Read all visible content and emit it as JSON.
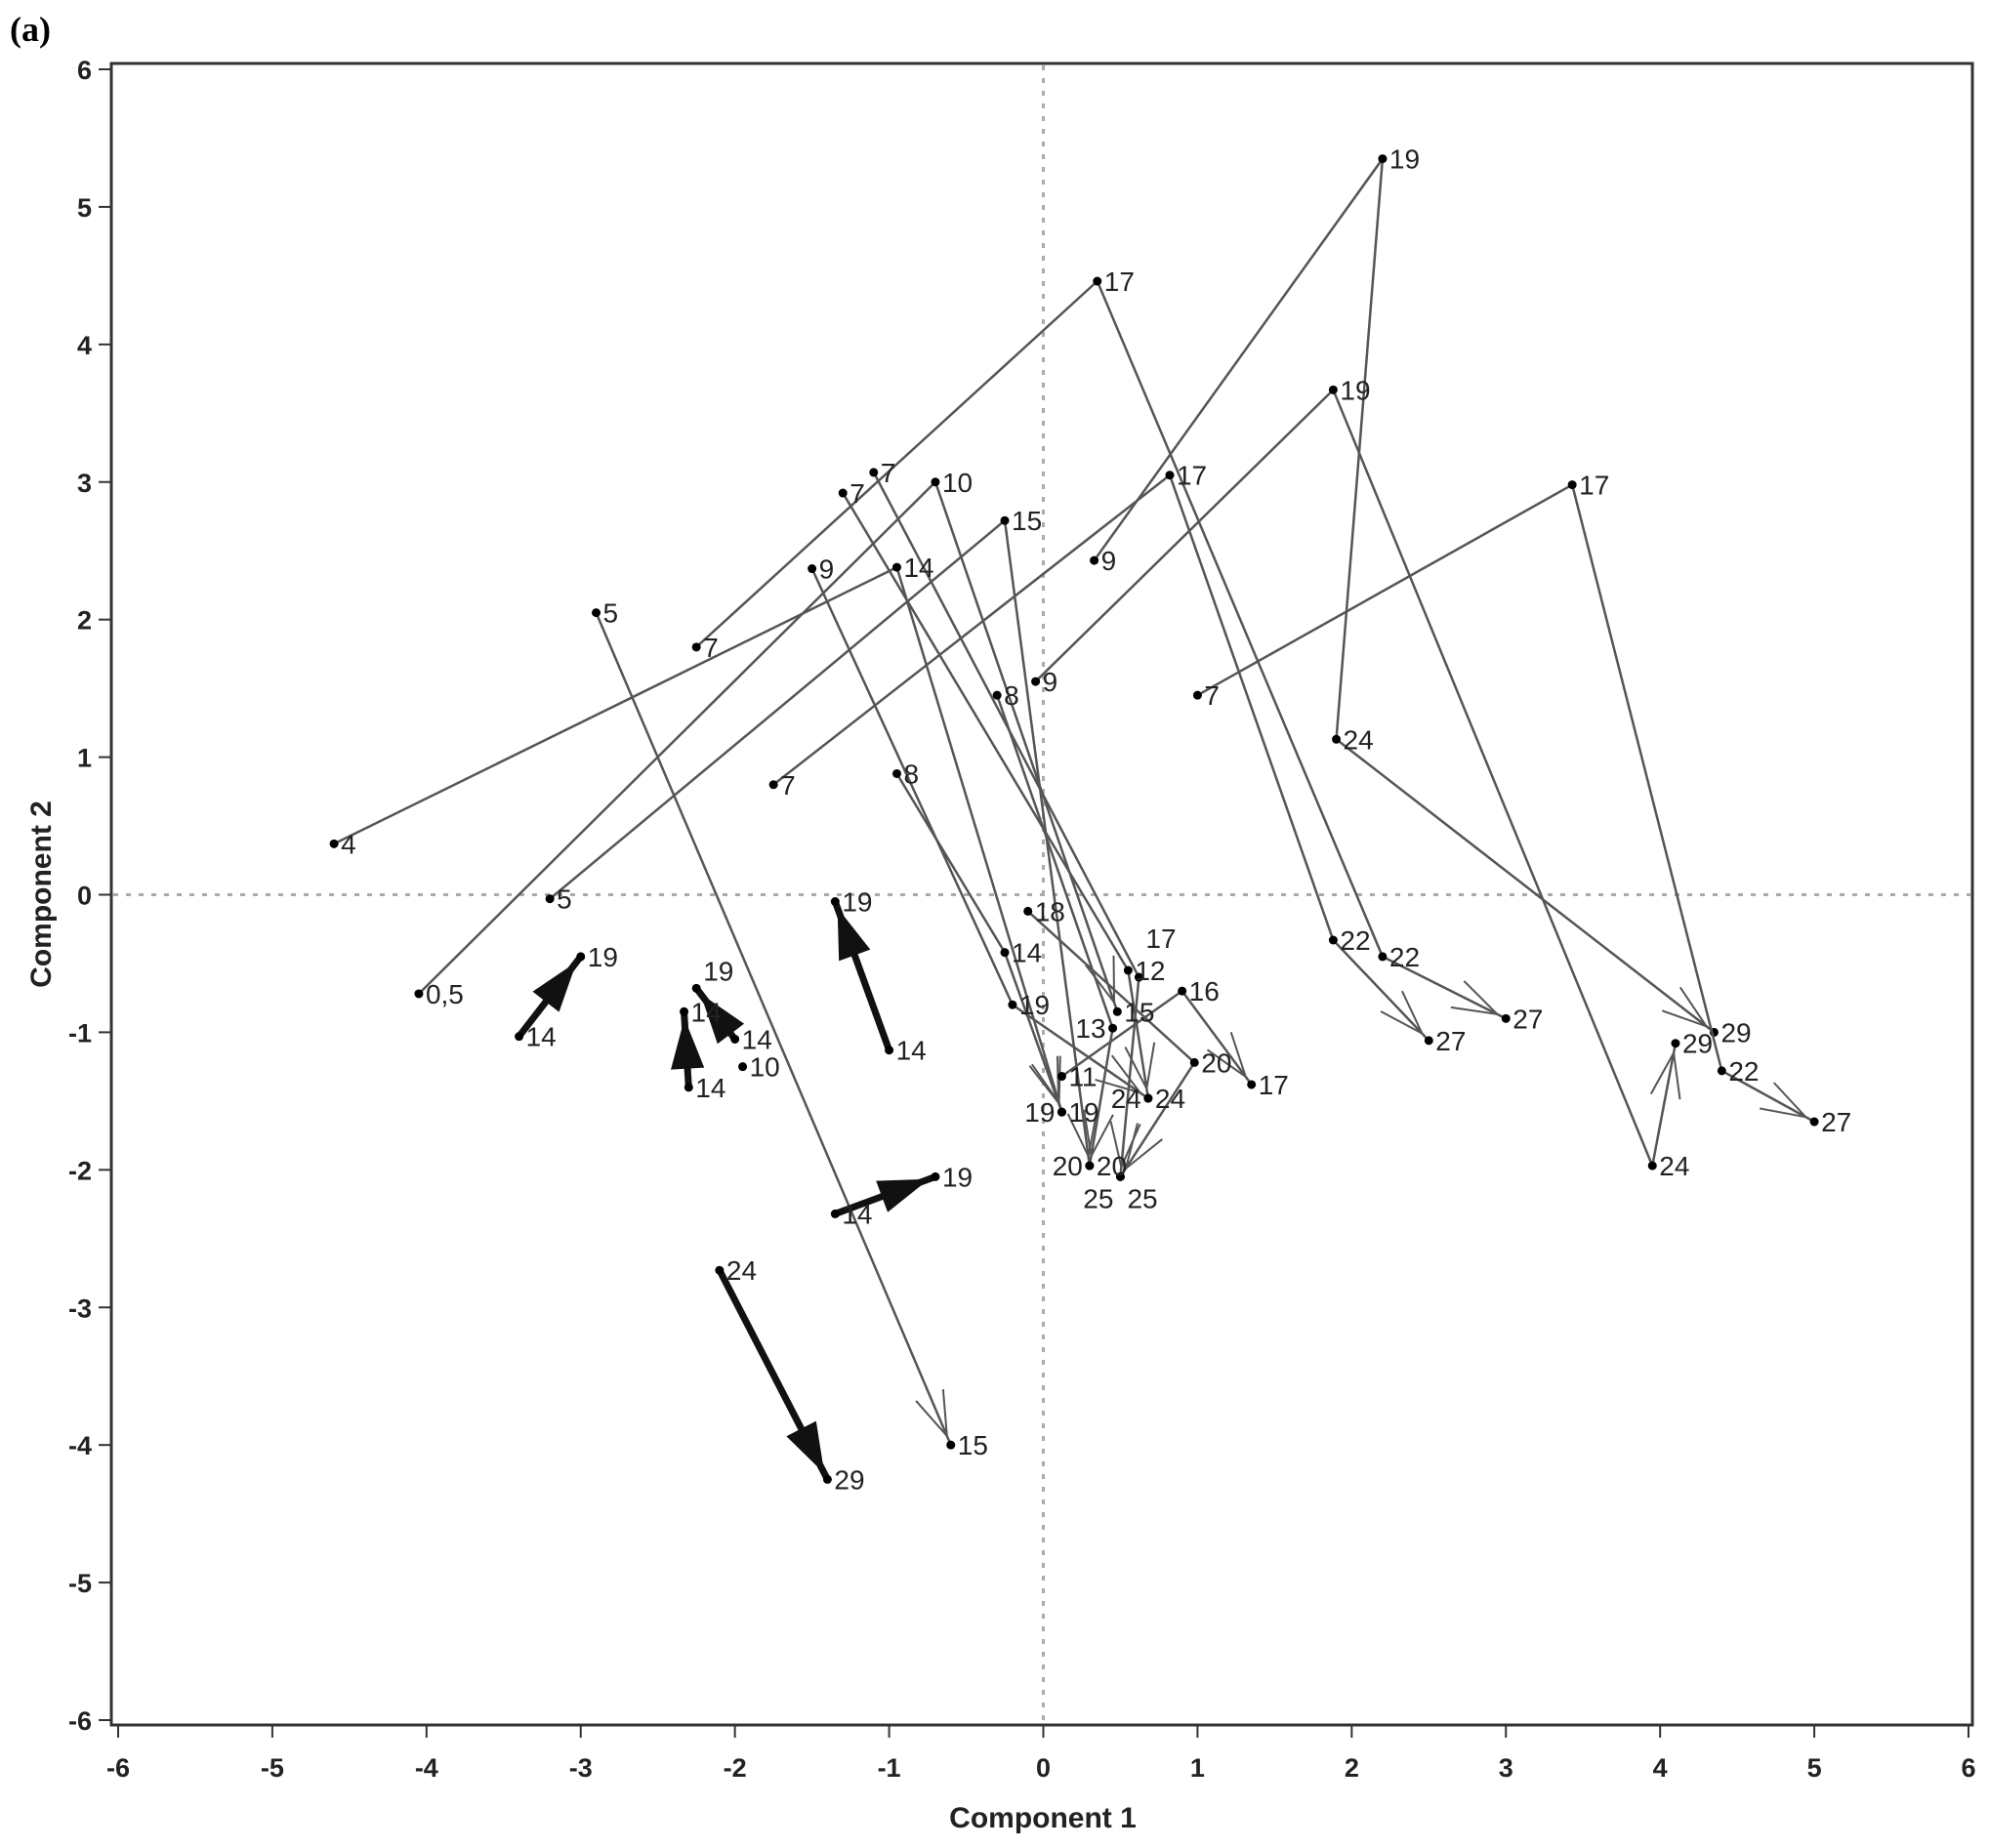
{
  "chart_data": {
    "type": "scatter",
    "panel_label": "(a)",
    "xlabel": "Component 1",
    "ylabel": "Component 2",
    "xlim": [
      -6,
      6
    ],
    "ylim": [
      -6,
      6
    ],
    "xticks": [
      "-6",
      "-5",
      "-4",
      "-3",
      "-2",
      "-1",
      "0",
      "1",
      "2",
      "3",
      "4",
      "5",
      "6"
    ],
    "yticks": [
      "6",
      "5",
      "4",
      "3",
      "2",
      "1",
      "0",
      "-1",
      "-2",
      "-3",
      "-4",
      "-5",
      "-6"
    ],
    "reference_lines": {
      "x": 0,
      "y": 0,
      "style": "dotted"
    },
    "line_color": "#555555",
    "bold_color": "#111111",
    "trajectories": [
      {
        "bold": false,
        "points": [
          [
            -4.6,
            0.37,
            "4"
          ],
          [
            -0.95,
            2.38,
            "14"
          ],
          [
            0.12,
            -1.58,
            "19"
          ]
        ]
      },
      {
        "bold": false,
        "points": [
          [
            -4.05,
            -0.72,
            "0,5"
          ],
          [
            -0.7,
            3.0,
            "10"
          ],
          [
            0.48,
            -0.85,
            "15"
          ]
        ]
      },
      {
        "bold": false,
        "points": [
          [
            -3.2,
            -0.03,
            "5"
          ],
          [
            -0.25,
            2.72,
            "15"
          ],
          [
            0.3,
            -1.97,
            "20"
          ]
        ]
      },
      {
        "bold": false,
        "points": [
          [
            -2.25,
            1.8,
            "7"
          ],
          [
            0.35,
            4.46,
            "17"
          ],
          [
            2.2,
            -0.45,
            "22"
          ],
          [
            3.0,
            -0.9,
            "27"
          ]
        ]
      },
      {
        "bold": false,
        "points": [
          [
            -1.75,
            0.8,
            "7"
          ],
          [
            0.82,
            3.05,
            "17"
          ],
          [
            1.88,
            -0.33,
            "22"
          ],
          [
            2.5,
            -1.06,
            "27"
          ]
        ]
      },
      {
        "bold": false,
        "points": [
          [
            0.33,
            2.43,
            "9"
          ],
          [
            2.2,
            5.35,
            "19"
          ],
          [
            1.9,
            1.13,
            "24"
          ],
          [
            4.35,
            -1.0,
            "29"
          ]
        ]
      },
      {
        "bold": false,
        "points": [
          [
            -0.05,
            1.55,
            "9"
          ],
          [
            1.88,
            3.67,
            "19"
          ],
          [
            3.95,
            -1.97,
            "24"
          ],
          [
            4.1,
            -1.08,
            "29"
          ]
        ]
      },
      {
        "bold": false,
        "points": [
          [
            1.0,
            1.45,
            "7"
          ],
          [
            3.43,
            2.98,
            "17"
          ],
          [
            4.4,
            -1.28,
            "22"
          ],
          [
            5.0,
            -1.65,
            "27"
          ]
        ]
      },
      {
        "bold": false,
        "points": [
          [
            -2.9,
            2.05,
            "5"
          ],
          [
            -0.6,
            -4.0,
            "15"
          ]
        ]
      },
      {
        "bold": false,
        "points": [
          [
            -1.3,
            2.92,
            "7"
          ],
          [
            0.55,
            -0.55,
            "12"
          ],
          [
            0.68,
            -1.48,
            "24"
          ]
        ]
      },
      {
        "bold": false,
        "points": [
          [
            -1.1,
            3.07,
            "7"
          ],
          [
            0.62,
            -0.6,
            "17"
          ],
          [
            0.5,
            -2.05,
            "25"
          ]
        ]
      },
      {
        "bold": false,
        "points": [
          [
            -1.5,
            2.37,
            "9"
          ],
          [
            -0.2,
            -0.8,
            "19"
          ],
          [
            0.68,
            -1.48,
            "24"
          ]
        ]
      },
      {
        "bold": false,
        "points": [
          [
            -0.95,
            0.88,
            "8"
          ],
          [
            -0.25,
            -0.42,
            "14"
          ],
          [
            0.12,
            -1.58,
            "19"
          ]
        ]
      },
      {
        "bold": false,
        "points": [
          [
            -0.3,
            1.45,
            "8"
          ],
          [
            0.45,
            -0.97,
            "13"
          ],
          [
            0.3,
            -1.97,
            "20"
          ]
        ]
      },
      {
        "bold": false,
        "points": [
          [
            0.12,
            -1.32,
            "11"
          ],
          [
            0.9,
            -0.7,
            "16"
          ],
          [
            1.35,
            -1.38,
            "17"
          ]
        ]
      },
      {
        "bold": false,
        "points": [
          [
            -0.1,
            -0.12,
            "18"
          ],
          [
            0.98,
            -1.22,
            "20"
          ],
          [
            0.5,
            -2.05,
            "25"
          ]
        ]
      },
      {
        "bold": true,
        "points": [
          [
            -3.4,
            -1.03,
            "14"
          ],
          [
            -3.0,
            -0.45,
            "19"
          ]
        ]
      },
      {
        "bold": true,
        "points": [
          [
            -1.0,
            -1.13,
            "14"
          ],
          [
            -1.35,
            -0.05,
            "19"
          ]
        ]
      },
      {
        "bold": true,
        "points": [
          [
            -1.35,
            -2.32,
            "14"
          ],
          [
            -0.7,
            -2.05,
            "19"
          ]
        ]
      },
      {
        "bold": true,
        "points": [
          [
            -2.1,
            -2.73,
            "24"
          ],
          [
            -1.4,
            -4.25,
            "29"
          ]
        ]
      },
      {
        "bold": true,
        "points": [
          [
            -2.3,
            -1.4,
            "14"
          ],
          [
            -2.33,
            -0.85,
            "14"
          ]
        ]
      },
      {
        "bold": true,
        "points": [
          [
            -2.0,
            -1.05,
            "14"
          ],
          [
            -2.25,
            -0.68,
            "19"
          ]
        ]
      },
      {
        "bold": false,
        "points": [
          [
            -1.95,
            -1.25,
            "10"
          ]
        ]
      }
    ]
  }
}
